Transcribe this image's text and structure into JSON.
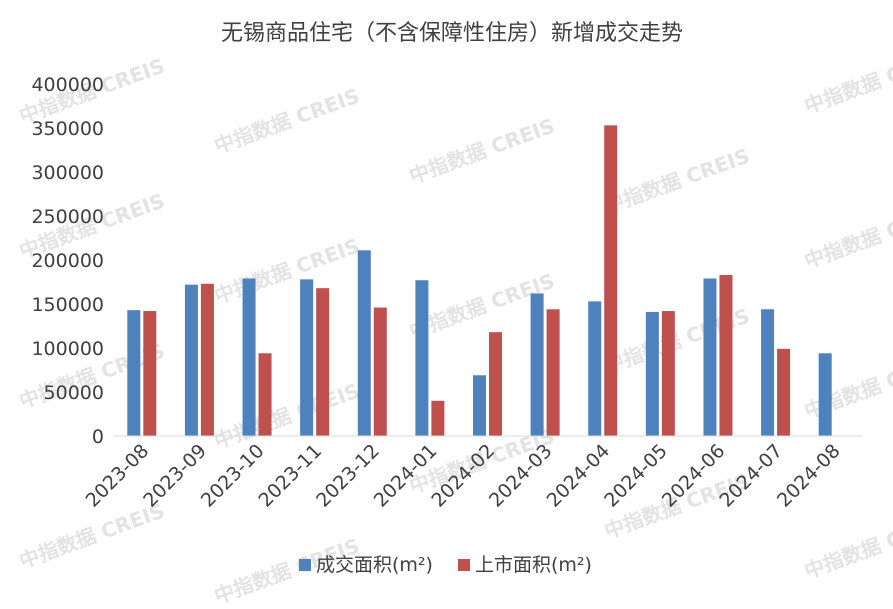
{
  "watermark": "中指数据 CREIS",
  "chart_data": {
    "type": "bar",
    "title": "无锡商品住宅（不含保障性住房）新增成交走势",
    "categories": [
      "2023-08",
      "2023-09",
      "2023-10",
      "2023-11",
      "2023-12",
      "2024-01",
      "2024-02",
      "2024-03",
      "2024-04",
      "2024-05",
      "2024-06",
      "2024-07",
      "2024-08"
    ],
    "series": [
      {
        "name": "成交面积(m²)",
        "color": "#4f81bd",
        "values": [
          143000,
          172000,
          179000,
          178000,
          211000,
          177000,
          69000,
          162000,
          153000,
          141000,
          179000,
          144000,
          94000
        ]
      },
      {
        "name": "上市面积(m²)",
        "color": "#c0504d",
        "values": [
          142000,
          173000,
          94000,
          168000,
          146000,
          40000,
          118000,
          144000,
          353000,
          142000,
          183000,
          99000,
          null
        ]
      }
    ],
    "yticks": [
      0,
      50000,
      100000,
      150000,
      200000,
      250000,
      300000,
      350000,
      400000
    ],
    "ylim": [
      0,
      400000
    ],
    "xlabel": "",
    "ylabel": "",
    "legend_position": "bottom"
  }
}
